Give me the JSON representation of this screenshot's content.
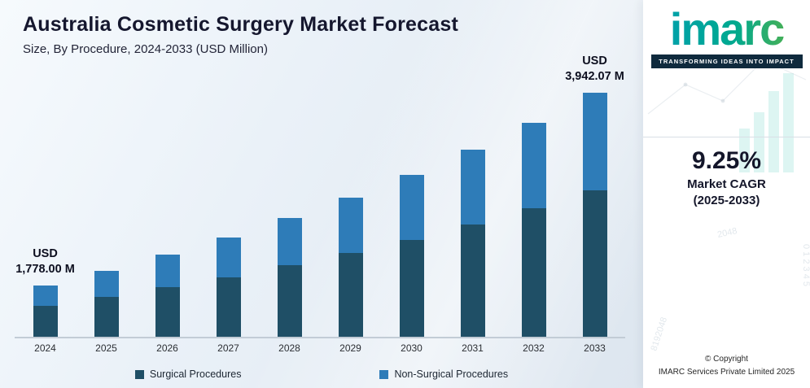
{
  "brand": {
    "logo_text": "imarc",
    "tagline": "TRANSFORMING IDEAS INTO IMPACT"
  },
  "cagr": {
    "value": "9.25%",
    "label_line1": "Market CAGR",
    "label_line2": "(2025-2033)"
  },
  "footer": {
    "line1": "© Copyright",
    "line2": "IMARC Services Private Limited 2025"
  },
  "decor": {
    "numbers_a": "2048",
    "numbers_b": "8192048",
    "numbers_c": "0 1 2 3 4 5"
  },
  "palette": {
    "surgical": "#1f4f66",
    "non_surgical": "#2e7cb8",
    "title_text": "#15172e",
    "axis_line": "#c2ccd6",
    "tagline_bg": "#0f2a3d",
    "logo_teal": "#00a3a0",
    "logo_green": "#5cb245"
  },
  "chart_data": {
    "type": "bar",
    "stacked": true,
    "title": "Australia Cosmetic Surgery Market Forecast",
    "subtitle": "Size, By Procedure, 2024-2033 (USD Million)",
    "unit": "USD Million",
    "categories": [
      "2024",
      "2025",
      "2026",
      "2027",
      "2028",
      "2029",
      "2030",
      "2031",
      "2032",
      "2033"
    ],
    "series": [
      {
        "name": "Surgical Procedures",
        "color": "#1f4f66",
        "values": [
          1066.8,
          1165.48,
          1273.29,
          1391.07,
          1519.74,
          1660.31,
          1813.9,
          1981.68,
          2164.99,
          2365.24
        ]
      },
      {
        "name": "Non-Surgical Procedures",
        "color": "#2e7cb8",
        "values": [
          711.2,
          776.99,
          848.86,
          927.38,
          1013.16,
          1106.88,
          1209.26,
          1321.12,
          1443.32,
          1576.83
        ]
      }
    ],
    "totals": [
      1778.0,
      1942.47,
      2122.15,
      2318.45,
      2532.9,
      2767.19,
      3023.16,
      3302.8,
      3608.31,
      3942.07
    ],
    "annotations": [
      {
        "category": "2024",
        "line1": "USD",
        "line2": "1,778.00 M"
      },
      {
        "category": "2033",
        "line1": "USD",
        "line2": "3,942.07 M"
      }
    ],
    "legend_position": "bottom",
    "grid": false,
    "drawn_baseline_value": 1200,
    "ylim": [
      0,
      4000
    ]
  }
}
